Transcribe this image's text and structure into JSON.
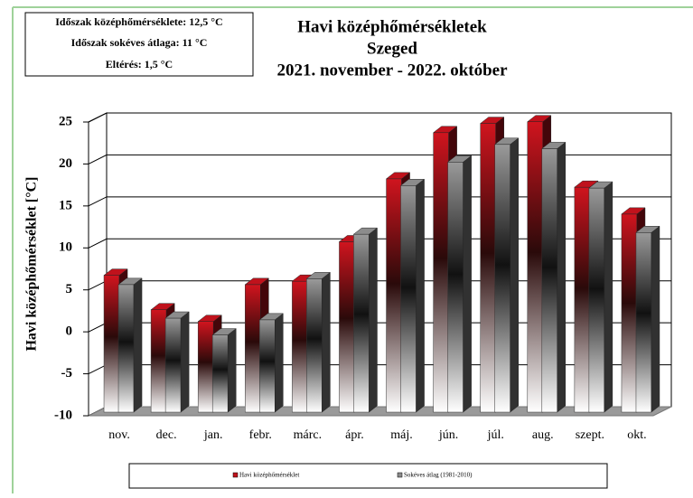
{
  "chart_data": {
    "type": "bar3d",
    "title": "Havi középhőmérsékletek",
    "subtitle": "Szeged",
    "period": "2021. november - 2022. október",
    "annotations": [
      "Időszak középhőmérséklete: 12,5 °C",
      "Időszak sokéves átlaga: 11 °C",
      "Eltérés: 1,5 °C"
    ],
    "ylabel": "Havi középhőmérséklet  [°C]",
    "categories": [
      "nov.",
      "dec.",
      "jan.",
      "febr.",
      "márc.",
      "ápr.",
      "máj.",
      "jún.",
      "júl.",
      "aug.",
      "szept.",
      "okt."
    ],
    "series": [
      {
        "name": "Havi középhőmérséklet",
        "color": "#c0121c",
        "values": [
          6.3,
          2.2,
          0.8,
          5.2,
          5.6,
          10.3,
          17.8,
          23.3,
          24.4,
          24.6,
          16.8,
          13.6
        ]
      },
      {
        "name": "Sokéves átlag (1981-2010)",
        "color": "#8c8c8c",
        "values": [
          5.2,
          1.2,
          -0.8,
          1.0,
          5.9,
          11.2,
          17.0,
          19.8,
          21.9,
          21.4,
          16.7,
          11.4
        ]
      }
    ],
    "ylim": [
      -10,
      25
    ],
    "yticks": [
      -10,
      -5,
      0,
      5,
      10,
      15,
      20,
      25
    ],
    "grid": true
  }
}
